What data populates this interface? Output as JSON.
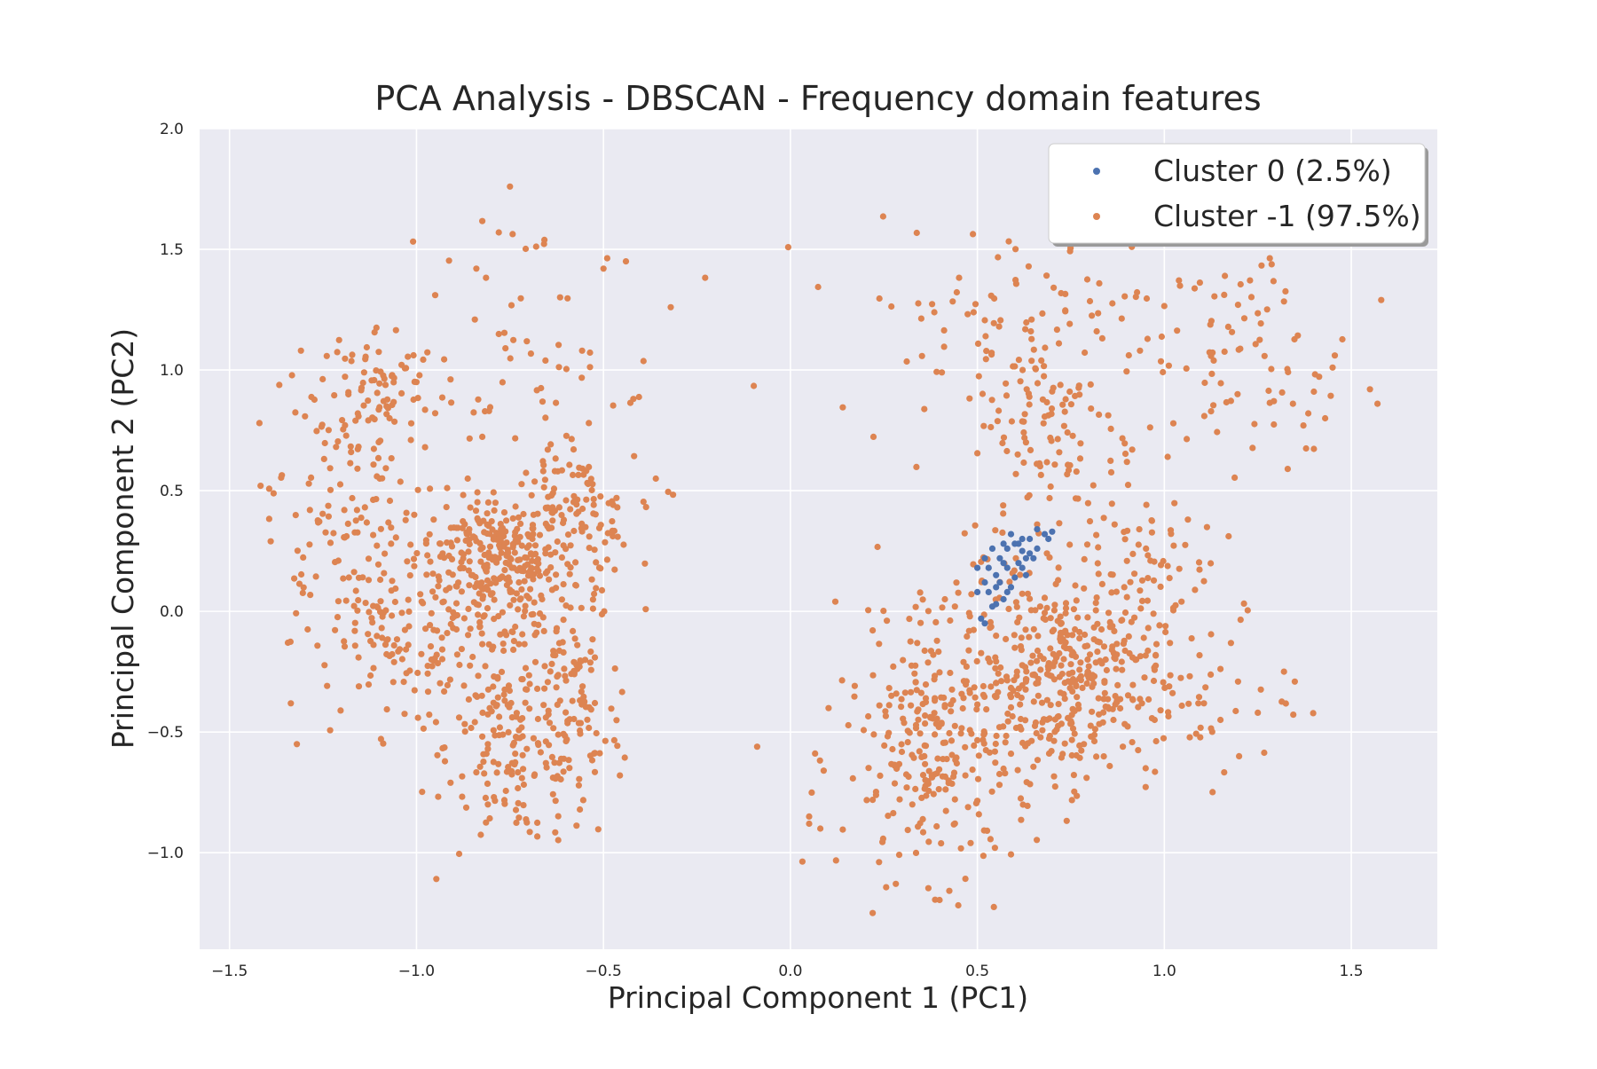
{
  "chart_data": {
    "type": "scatter",
    "title": "PCA Analysis - DBSCAN - Frequency domain features",
    "xlabel": "Principal Component 1 (PC1)",
    "ylabel": "Principal Component 2 (PC2)",
    "xlim": [
      -1.58,
      1.73
    ],
    "ylim": [
      -1.4,
      2.0
    ],
    "xticks": [
      -1.5,
      -1.0,
      -0.5,
      0.0,
      0.5,
      1.0,
      1.5
    ],
    "xtick_labels": [
      "−1.5",
      "−1.0",
      "−0.5",
      "0.0",
      "0.5",
      "1.0",
      "1.5"
    ],
    "yticks": [
      -1.0,
      -0.5,
      0.0,
      0.5,
      1.0,
      1.5,
      2.0
    ],
    "ytick_labels": [
      "−1.0",
      "−0.5",
      "0.0",
      "0.5",
      "1.0",
      "1.5",
      "2.0"
    ],
    "grid": true,
    "background_color": "#eaeaf2",
    "legend_position": "top-right",
    "series": [
      {
        "name": "Cluster 0 (2.5%)",
        "color": "#4c72b0",
        "points": [
          [
            0.5,
            0.18
          ],
          [
            0.52,
            0.12
          ],
          [
            0.53,
            0.08
          ],
          [
            0.55,
            0.15
          ],
          [
            0.56,
            0.22
          ],
          [
            0.57,
            0.05
          ],
          [
            0.58,
            0.18
          ],
          [
            0.59,
            0.1
          ],
          [
            0.6,
            0.28
          ],
          [
            0.61,
            0.2
          ],
          [
            0.62,
            0.25
          ],
          [
            0.63,
            0.15
          ],
          [
            0.64,
            0.3
          ],
          [
            0.65,
            0.22
          ],
          [
            0.66,
            0.26
          ],
          [
            0.68,
            0.32
          ],
          [
            0.7,
            0.33
          ],
          [
            0.54,
            0.02
          ],
          [
            0.51,
            -0.03
          ],
          [
            0.52,
            -0.05
          ],
          [
            0.56,
            0.12
          ],
          [
            0.58,
            0.26
          ],
          [
            0.61,
            0.28
          ],
          [
            0.63,
            0.22
          ],
          [
            0.53,
            0.18
          ],
          [
            0.55,
            0.1
          ],
          [
            0.57,
            0.28
          ],
          [
            0.59,
            0.32
          ],
          [
            0.62,
            0.18
          ],
          [
            0.64,
            0.24
          ],
          [
            0.6,
            0.14
          ],
          [
            0.52,
            0.22
          ],
          [
            0.54,
            0.26
          ],
          [
            0.66,
            0.34
          ],
          [
            0.69,
            0.3
          ],
          [
            0.58,
            0.08
          ],
          [
            0.5,
            0.08
          ],
          [
            0.55,
            0.03
          ],
          [
            0.57,
            0.2
          ],
          [
            0.62,
            0.3
          ]
        ]
      },
      {
        "name": "Cluster -1 (97.5%)",
        "color": "#dd8452",
        "points": []
      }
    ]
  }
}
